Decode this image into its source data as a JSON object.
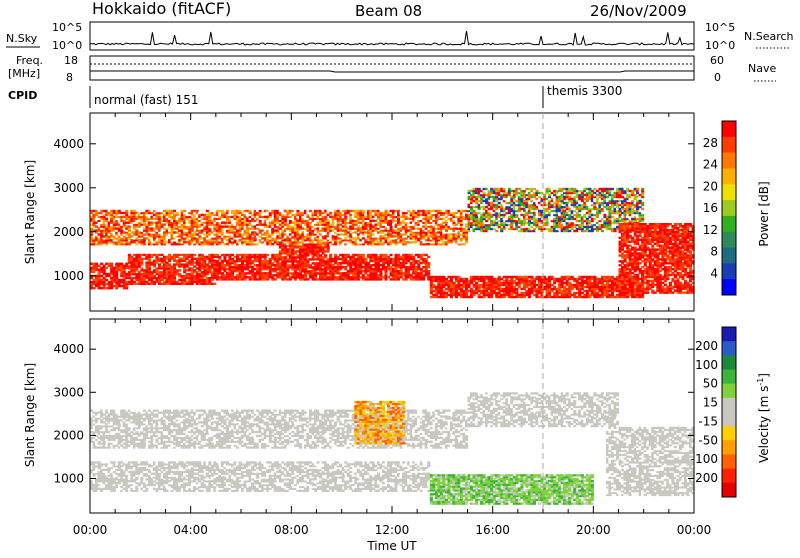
{
  "header": {
    "title": "Hokkaido (fitACF)",
    "beam": "Beam 08",
    "date": "26/Nov/2009"
  },
  "top_panels": {
    "nsky_label": "N.Sky",
    "nsearch_label": "N.Search",
    "freq_label": "Freq.",
    "freq_unit": "[MHz]",
    "nave_label": "Nave",
    "cpid_label": "CPID",
    "nsky_ticks": [
      "10^5",
      "10^0"
    ],
    "nsearch_ticks": [
      "10^5",
      "10^0"
    ],
    "freq_ticks": [
      "18",
      "8"
    ],
    "nave_ticks": [
      "60",
      "0"
    ]
  },
  "cpid": {
    "segments": [
      {
        "label": "normal (fast) 151",
        "start_hour": 0
      },
      {
        "label": "themis 3300",
        "start_hour": 18.0
      }
    ]
  },
  "chart_data": [
    {
      "type": "heatmap",
      "name": "power",
      "ylabel": "Slant Range [km]",
      "ylim": [
        200,
        4700
      ],
      "yticks": [
        "1000",
        "2000",
        "3000",
        "4000"
      ],
      "xlabel": "Time UT",
      "xticks": [
        "00:00",
        "04:00",
        "08:00",
        "12:00",
        "16:00",
        "20:00",
        "00:00"
      ],
      "colorbar": {
        "label": "Power [dB]",
        "ticks": [
          "28",
          "24",
          "20",
          "16",
          "12",
          "8",
          "4"
        ],
        "colors": [
          "#ff0000",
          "#ff3c00",
          "#ff7800",
          "#ffb000",
          "#f0e000",
          "#9ccc20",
          "#30b020",
          "#2e8a5a",
          "#1e6a80",
          "#1a3cb4",
          "#0000ff"
        ]
      },
      "features": [
        {
          "t0": 0.0,
          "t1": 1.5,
          "r0": 700,
          "r1": 1300,
          "level": "high"
        },
        {
          "t0": 1.5,
          "t1": 5.0,
          "r0": 800,
          "r1": 1500,
          "level": "high"
        },
        {
          "t0": 5.0,
          "t1": 7.5,
          "r0": 900,
          "r1": 1500,
          "level": "high"
        },
        {
          "t0": 7.5,
          "t1": 9.5,
          "r0": 900,
          "r1": 1900,
          "level": "high"
        },
        {
          "t0": 9.5,
          "t1": 13.5,
          "r0": 900,
          "r1": 1500,
          "level": "high"
        },
        {
          "t0": 13.5,
          "t1": 22.0,
          "r0": 500,
          "r1": 1000,
          "level": "high"
        },
        {
          "t0": 0.0,
          "t1": 15.0,
          "r0": 1700,
          "r1": 2500,
          "level": "mid"
        },
        {
          "t0": 15.0,
          "t1": 22.0,
          "r0": 2000,
          "r1": 3000,
          "level": "mixed"
        },
        {
          "t0": 21.0,
          "t1": 24.0,
          "r0": 600,
          "r1": 2200,
          "level": "high"
        }
      ]
    },
    {
      "type": "heatmap",
      "name": "velocity",
      "ylabel": "Slant Range [km]",
      "ylim": [
        200,
        4700
      ],
      "yticks": [
        "1000",
        "2000",
        "3000",
        "4000"
      ],
      "xlabel": "Time UT",
      "xticks": [
        "00:00",
        "04:00",
        "08:00",
        "12:00",
        "16:00",
        "20:00",
        "00:00"
      ],
      "colorbar": {
        "label": "Velocity [m s",
        "label_sup": "-1",
        "label_end": "]",
        "ticks": [
          "200",
          "100",
          "50",
          "15",
          "-15",
          "-50",
          "-100",
          "-200"
        ],
        "colors": [
          "#1a1ab4",
          "#2a5ac8",
          "#1a8a3a",
          "#3cb43c",
          "#7fd23c",
          "#c8c8c0",
          "#c8c8c0",
          "#ffd000",
          "#ffa000",
          "#ff6000",
          "#ff2000",
          "#e60000"
        ]
      },
      "features": [
        {
          "t0": 0.0,
          "t1": 13.5,
          "r0": 700,
          "r1": 1400,
          "level": "ground"
        },
        {
          "t0": 0.0,
          "t1": 15.0,
          "r0": 1700,
          "r1": 2600,
          "level": "ground"
        },
        {
          "t0": 13.5,
          "t1": 20.0,
          "r0": 400,
          "r1": 1100,
          "level": "positive"
        },
        {
          "t0": 10.5,
          "t1": 12.5,
          "r0": 1800,
          "r1": 2800,
          "level": "negative"
        },
        {
          "t0": 15.0,
          "t1": 21.0,
          "r0": 2200,
          "r1": 3000,
          "level": "ground"
        },
        {
          "t0": 20.5,
          "t1": 24.0,
          "r0": 600,
          "r1": 2200,
          "level": "ground"
        }
      ]
    }
  ]
}
